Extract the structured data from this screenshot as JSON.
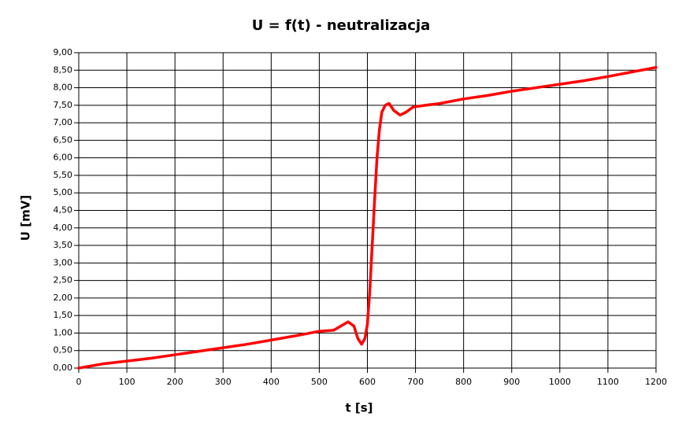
{
  "chart_data": {
    "type": "line",
    "title": "U = f(t) - neutralizacja",
    "xlabel": "t [s]",
    "ylabel": "U [mV]",
    "x": [
      0,
      50,
      100,
      150,
      200,
      250,
      300,
      350,
      400,
      450,
      500,
      530,
      545,
      560,
      572,
      580,
      588,
      595,
      600,
      605,
      610,
      615,
      620,
      625,
      630,
      637,
      645,
      655,
      668,
      680,
      695,
      720,
      750,
      800,
      850,
      900,
      950,
      1000,
      1050,
      1100,
      1150,
      1200
    ],
    "series": [
      {
        "color": "#ff0000",
        "values": [
          0.0,
          0.12,
          0.2,
          0.28,
          0.38,
          0.48,
          0.58,
          0.68,
          0.8,
          0.92,
          1.05,
          1.08,
          1.2,
          1.32,
          1.2,
          0.85,
          0.68,
          0.85,
          1.25,
          2.2,
          3.5,
          4.8,
          6.0,
          6.8,
          7.3,
          7.5,
          7.55,
          7.35,
          7.22,
          7.3,
          7.45,
          7.5,
          7.55,
          7.68,
          7.78,
          7.9,
          8.0,
          8.1,
          8.2,
          8.32,
          8.45,
          8.58
        ]
      }
    ],
    "xlim": [
      0,
      1200
    ],
    "xticks": [
      0,
      100,
      200,
      300,
      400,
      500,
      600,
      700,
      800,
      900,
      1000,
      1100,
      1200
    ],
    "ylim": [
      0,
      9
    ],
    "yticks": [
      {
        "value": 0,
        "label": "0,00"
      },
      {
        "value": 0.5,
        "label": "0,50"
      },
      {
        "value": 1,
        "label": "1,00"
      },
      {
        "value": 1.5,
        "label": "1,50"
      },
      {
        "value": 2,
        "label": "2,00"
      },
      {
        "value": 2.5,
        "label": "2,50"
      },
      {
        "value": 3,
        "label": "3,00"
      },
      {
        "value": 3.5,
        "label": "3,50"
      },
      {
        "value": 4,
        "label": "4,00"
      },
      {
        "value": 4.5,
        "label": "4,50"
      },
      {
        "value": 5,
        "label": "5,00"
      },
      {
        "value": 5.5,
        "label": "5,50"
      },
      {
        "value": 6,
        "label": "6,00"
      },
      {
        "value": 6.5,
        "label": "6,50"
      },
      {
        "value": 7,
        "label": "7,00"
      },
      {
        "value": 7.5,
        "label": "7,50"
      },
      {
        "value": 8,
        "label": "8,00"
      },
      {
        "value": 8.5,
        "label": "8,50"
      },
      {
        "value": 9,
        "label": "9,00"
      }
    ],
    "grid": true
  }
}
